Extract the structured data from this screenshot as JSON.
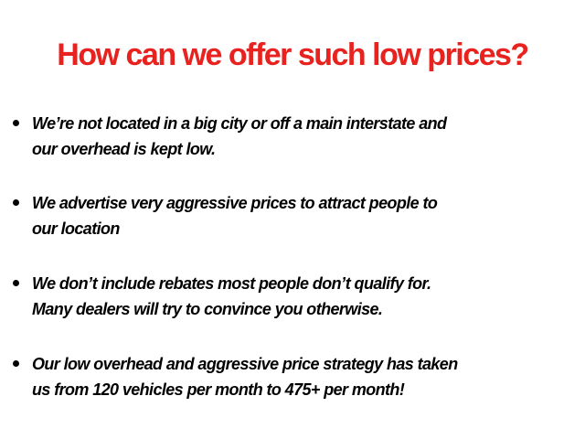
{
  "title": "How can we offer such low prices?",
  "title_color": "#e8231f",
  "bullets": [
    {
      "lines": [
        "We’re not located in a big city or off a main interstate and",
        "our overhead is kept low."
      ]
    },
    {
      "lines": [
        "We advertise very aggressive prices to attract people to",
        "our location"
      ]
    },
    {
      "lines": [
        "We don’t include rebates most people don’t qualify for.",
        "Many dealers will try to convince you otherwise."
      ]
    },
    {
      "lines": [
        "Our low overhead and aggressive price strategy has taken",
        "us from 120 vehicles per month to 475+ per month!"
      ]
    }
  ]
}
